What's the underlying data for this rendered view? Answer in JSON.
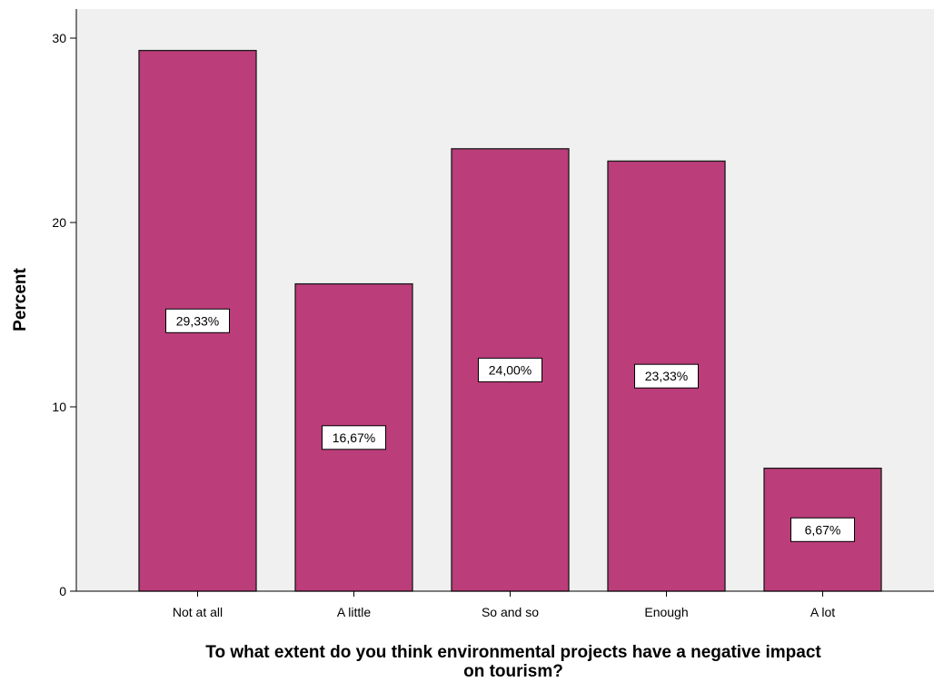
{
  "chart_data": {
    "type": "bar",
    "categories": [
      "Not at all",
      "A little",
      "So and so",
      "Enough",
      "A lot"
    ],
    "values": [
      29.33,
      16.67,
      24.0,
      23.33,
      6.67
    ],
    "data_labels": [
      "29,33%",
      "16,67%",
      "24,00%",
      "23,33%",
      "6,67%"
    ],
    "xlabel": "To what extent do you think environmental projects have a negative impact on tourism?",
    "xlabel_lines": [
      "To what extent do you think environmental projects have a negative impact",
      "on tourism?"
    ],
    "ylabel": "Percent",
    "ylim": [
      0,
      32
    ],
    "yticks": [
      0,
      10,
      20,
      30
    ],
    "ytick_labels": [
      "0",
      "10",
      "20",
      "30"
    ],
    "grid": false,
    "colors": {
      "bar_fill": "#bb3d7a",
      "bar_stroke": "#1a1a1a",
      "plot_background": "#f0f0f0",
      "label_box_fill": "#ffffff"
    }
  }
}
